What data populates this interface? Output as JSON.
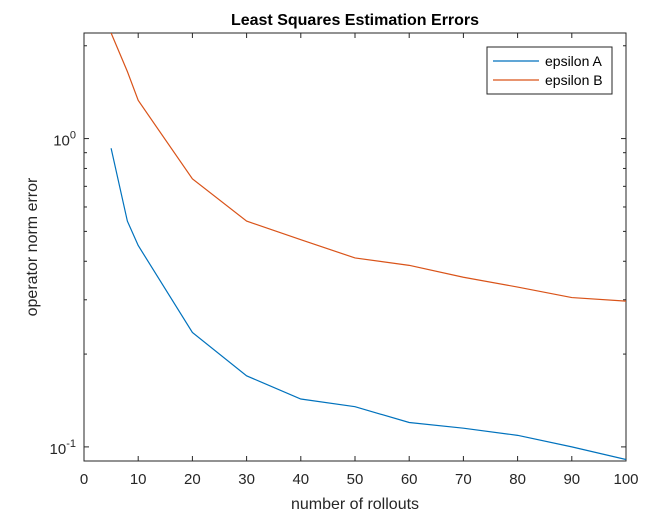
{
  "chart_data": {
    "type": "line",
    "title": "Least Squares Estimation Errors",
    "xlabel": "number of rollouts",
    "ylabel": "operator norm error",
    "xlim": [
      0,
      100
    ],
    "ylim": [
      0.09,
      2.2
    ],
    "yscale": "log",
    "xticks": [
      "0",
      "10",
      "20",
      "30",
      "40",
      "50",
      "60",
      "70",
      "80",
      "90",
      "100"
    ],
    "yticks": [
      {
        "base": "10",
        "exp": "0",
        "value": 1
      },
      {
        "base": "10",
        "exp": "-1",
        "value": 0.1
      }
    ],
    "grid": false,
    "legend_position": "top-right",
    "x": [
      5,
      8,
      10,
      20,
      30,
      40,
      50,
      60,
      70,
      80,
      90,
      100
    ],
    "series": [
      {
        "name": "epsilon A",
        "color": "#0072BD",
        "values": [
          0.93,
          0.54,
          0.45,
          0.235,
          0.17,
          0.143,
          0.135,
          0.12,
          0.115,
          0.109,
          0.1,
          0.091
        ]
      },
      {
        "name": "epsilon B",
        "color": "#D95319",
        "values": [
          2.2,
          1.65,
          1.33,
          0.74,
          0.54,
          0.47,
          0.41,
          0.388,
          0.355,
          0.33,
          0.305,
          0.297
        ]
      }
    ]
  }
}
